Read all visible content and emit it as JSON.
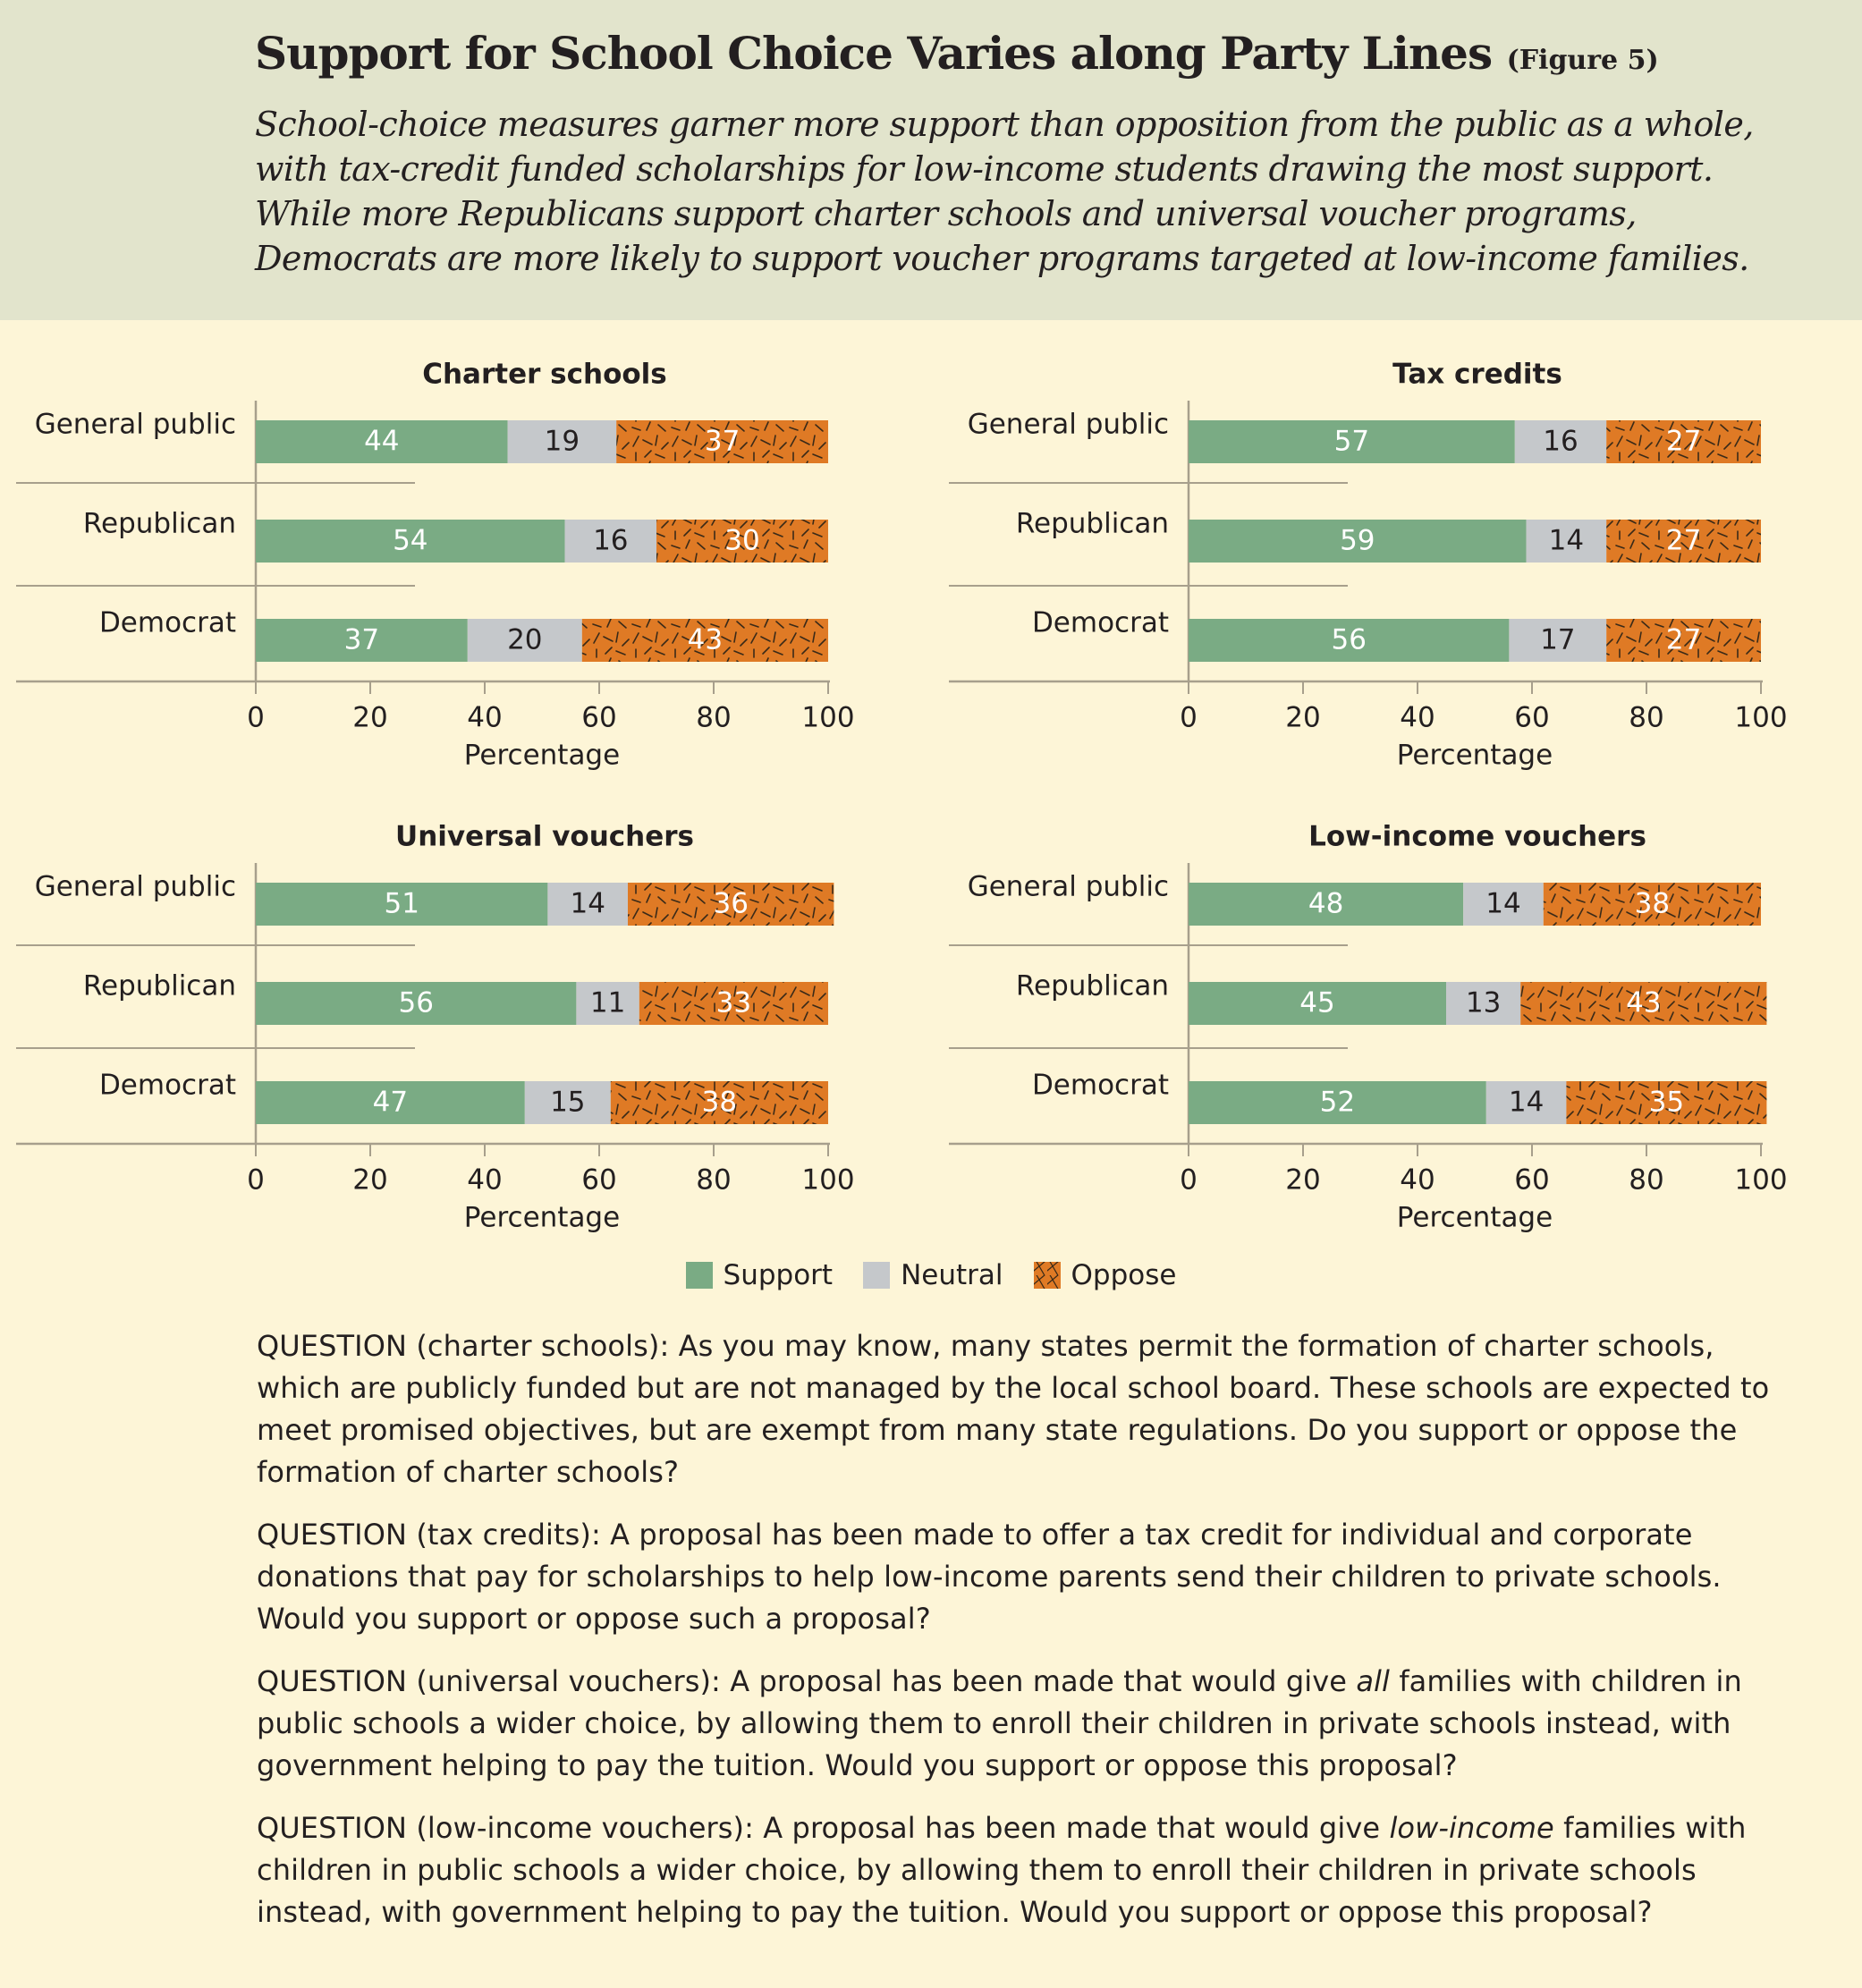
{
  "header": {
    "title": "Support for School Choice Varies along Party Lines",
    "figure_label": "(Figure 5)",
    "subtitle": "School-choice measures garner more support than opposition from the public as a whole, with tax-credit funded scholarships for low-income students drawing the most support. While more Republicans support charter schools and universal voucher programs, Democrats are more likely to support voucher programs targeted at low-income families."
  },
  "colors": {
    "support": "#7aab84",
    "neutral": "#c5c8cb",
    "oppose": "#df7a25",
    "header_bg": "#e2e4cc",
    "page_bg": "#fdf5d7"
  },
  "chart_data": [
    {
      "type": "bar",
      "orientation": "horizontal",
      "stacked": true,
      "title": "Charter schools",
      "categories": [
        "General public",
        "Republican",
        "Democrat"
      ],
      "series": [
        {
          "name": "Support",
          "values": [
            44,
            54,
            37
          ]
        },
        {
          "name": "Neutral",
          "values": [
            19,
            16,
            20
          ]
        },
        {
          "name": "Oppose",
          "values": [
            37,
            30,
            43
          ]
        }
      ],
      "xlabel": "Percentage",
      "xlim": [
        0,
        100
      ],
      "xticks": [
        0,
        20,
        40,
        60,
        80,
        100
      ]
    },
    {
      "type": "bar",
      "orientation": "horizontal",
      "stacked": true,
      "title": "Tax credits",
      "categories": [
        "General public",
        "Republican",
        "Democrat"
      ],
      "series": [
        {
          "name": "Support",
          "values": [
            57,
            59,
            56
          ]
        },
        {
          "name": "Neutral",
          "values": [
            16,
            14,
            17
          ]
        },
        {
          "name": "Oppose",
          "values": [
            27,
            27,
            27
          ]
        }
      ],
      "xlabel": "Percentage",
      "xlim": [
        0,
        100
      ],
      "xticks": [
        0,
        20,
        40,
        60,
        80,
        100
      ]
    },
    {
      "type": "bar",
      "orientation": "horizontal",
      "stacked": true,
      "title": "Universal vouchers",
      "categories": [
        "General public",
        "Republican",
        "Democrat"
      ],
      "series": [
        {
          "name": "Support",
          "values": [
            51,
            56,
            47
          ]
        },
        {
          "name": "Neutral",
          "values": [
            14,
            11,
            15
          ]
        },
        {
          "name": "Oppose",
          "values": [
            36,
            33,
            38
          ]
        }
      ],
      "xlabel": "Percentage",
      "xlim": [
        0,
        100
      ],
      "xticks": [
        0,
        20,
        40,
        60,
        80,
        100
      ]
    },
    {
      "type": "bar",
      "orientation": "horizontal",
      "stacked": true,
      "title": "Low-income vouchers",
      "categories": [
        "General public",
        "Republican",
        "Democrat"
      ],
      "series": [
        {
          "name": "Support",
          "values": [
            48,
            45,
            52
          ]
        },
        {
          "name": "Neutral",
          "values": [
            14,
            13,
            14
          ]
        },
        {
          "name": "Oppose",
          "values": [
            38,
            43,
            35
          ]
        }
      ],
      "xlabel": "Percentage",
      "xlim": [
        0,
        100
      ],
      "xticks": [
        0,
        20,
        40,
        60,
        80,
        100
      ]
    }
  ],
  "legend": {
    "support": "Support",
    "neutral": "Neutral",
    "oppose": "Oppose"
  },
  "questions": [
    {
      "prefix": "QUESTION (charter schools): As you may know, many states permit the formation of charter schools, which are publicly funded but are not managed by the local school board. These schools are expected to meet promised objectives, but are exempt from many state regulations. Do you support or oppose the formation of charter schools?",
      "emphasis": "",
      "suffix": ""
    },
    {
      "prefix": "QUESTION (tax credits): A proposal has been made to offer a tax credit for individual and corporate donations that pay for scholarships to help low-income parents send their children to private schools. Would you support or oppose such a proposal?",
      "emphasis": "",
      "suffix": ""
    },
    {
      "prefix": "QUESTION  (universal vouchers): A proposal has been made that would give ",
      "emphasis": "all",
      "suffix": " families with children in public schools a wider choice, by allowing them to enroll their children in private schools instead, with government helping to pay the tuition. Would you support or oppose this proposal?"
    },
    {
      "prefix": "QUESTION (low-income vouchers): A proposal has been made that would give ",
      "emphasis": "low-income",
      "suffix": " families with children in public schools a wider choice, by allowing them to enroll their children in private schools instead, with government helping to pay the tuition. Would you support or oppose this proposal?"
    }
  ]
}
